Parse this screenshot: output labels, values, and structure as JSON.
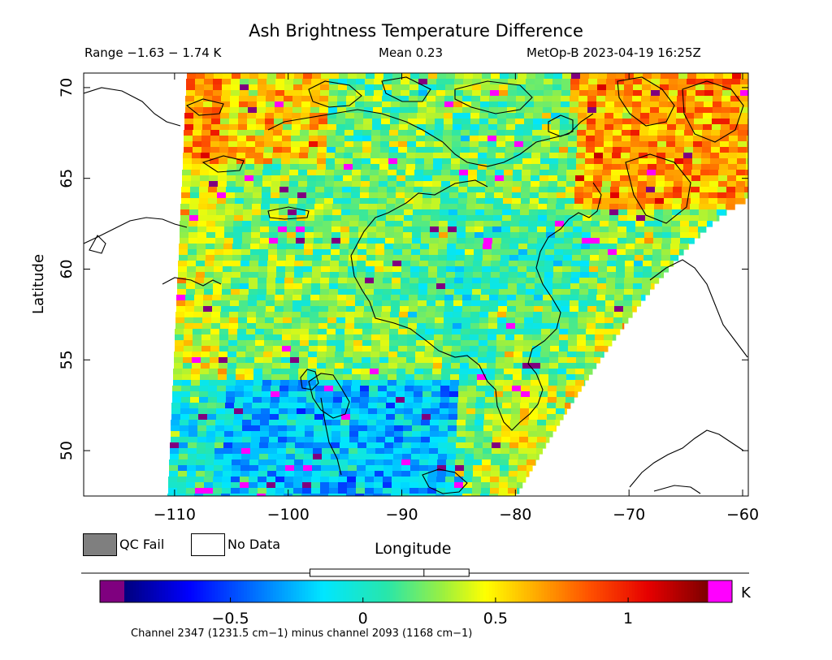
{
  "header": {
    "title": "Ash Brightness Temperature Difference",
    "range": "Range −1.63 − 1.74 K",
    "mean": "Mean 0.23",
    "satellite": "MetOp-B 2023-04-19 16:25Z"
  },
  "axes": {
    "xlabel": "Longitude",
    "ylabel": "Latitude",
    "lon_range": [
      -118,
      -59.5
    ],
    "lat_range": [
      47.5,
      70.8
    ],
    "x_ticks": [
      -110,
      -100,
      -90,
      -80,
      -70,
      -60
    ],
    "x_tick_labels": [
      "−110",
      "−100",
      "−90",
      "−80",
      "−70",
      "−60"
    ],
    "y_ticks": [
      50,
      55,
      60,
      65,
      70
    ],
    "y_tick_labels": [
      "50",
      "55",
      "60",
      "65",
      "70"
    ]
  },
  "legend": {
    "qc_fail": "QC Fail",
    "no_data": "No Data",
    "qc_fail_color": "#7f7f7f",
    "no_data_color": "#ffffff"
  },
  "colorbar": {
    "unit": "K",
    "label": "Channel 2347 (1231.5 cm−1) minus channel 2093 (1168 cm−1)",
    "vmin": -0.9,
    "vmax": 1.3,
    "ticks": [
      -0.5,
      0,
      0.5,
      1
    ],
    "tick_labels": [
      "−0.5",
      "0",
      "0.5",
      "1"
    ],
    "under_color": "#7f007f",
    "over_color": "#ff00ff",
    "range_box": [
      -0.2,
      0.4
    ],
    "mean_marker": 0.23
  },
  "chart_data": {
    "type": "heatmap",
    "title": "Ash Brightness Temperature Difference",
    "xlabel": "Longitude",
    "ylabel": "Latitude",
    "xlim": [
      -118,
      -59.5
    ],
    "ylim": [
      47.5,
      70.8
    ],
    "value_range": [
      -1.63,
      1.74
    ],
    "mean": 0.23,
    "units": "K",
    "grid": false
  }
}
